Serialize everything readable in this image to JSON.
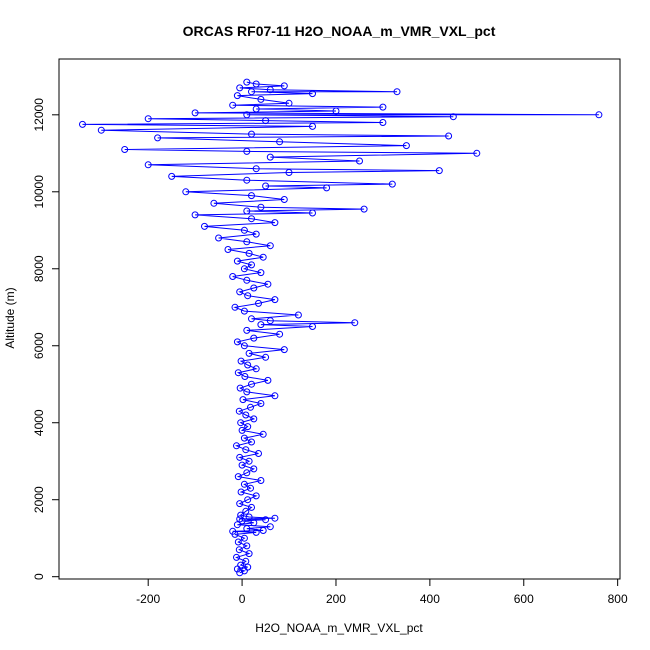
{
  "chart_data": {
    "type": "scatter",
    "title": "ORCAS RF07-11 H2O_NOAA_m_VMR_VXL_pct",
    "xlabel": "H2O_NOAA_m_VMR_VXL_pct",
    "ylabel": "Altitude (m)",
    "xlim": [
      -390,
      805
    ],
    "ylim": [
      -60,
      13450
    ],
    "x_ticks": [
      -200,
      0,
      200,
      400,
      600,
      800
    ],
    "y_ticks": [
      0,
      2000,
      4000,
      6000,
      8000,
      10000,
      12000
    ],
    "grid": false,
    "legend": "none",
    "series": [
      {
        "marker": "open-circle",
        "line": true,
        "color": "#0000ff",
        "points": [
          [
            -5,
            100
          ],
          [
            5,
            150
          ],
          [
            -10,
            200
          ],
          [
            12,
            250
          ],
          [
            -3,
            300
          ],
          [
            8,
            400
          ],
          [
            -12,
            500
          ],
          [
            15,
            600
          ],
          [
            -6,
            700
          ],
          [
            10,
            800
          ],
          [
            -8,
            900
          ],
          [
            5,
            1000
          ],
          [
            -15,
            1100
          ],
          [
            30,
            1150
          ],
          [
            -20,
            1180
          ],
          [
            45,
            1200
          ],
          [
            10,
            1250
          ],
          [
            60,
            1300
          ],
          [
            -10,
            1350
          ],
          [
            25,
            1400
          ],
          [
            0,
            1450
          ],
          [
            50,
            1480
          ],
          [
            -5,
            1500
          ],
          [
            70,
            1520
          ],
          [
            15,
            1550
          ],
          [
            -3,
            1600
          ],
          [
            8,
            1700
          ],
          [
            20,
            1800
          ],
          [
            -5,
            1900
          ],
          [
            12,
            2000
          ],
          [
            30,
            2100
          ],
          [
            -2,
            2200
          ],
          [
            18,
            2300
          ],
          [
            5,
            2400
          ],
          [
            40,
            2500
          ],
          [
            -8,
            2600
          ],
          [
            10,
            2700
          ],
          [
            25,
            2800
          ],
          [
            0,
            2900
          ],
          [
            15,
            3000
          ],
          [
            -5,
            3100
          ],
          [
            35,
            3200
          ],
          [
            8,
            3300
          ],
          [
            -12,
            3400
          ],
          [
            20,
            3500
          ],
          [
            5,
            3600
          ],
          [
            45,
            3700
          ],
          [
            0,
            3800
          ],
          [
            12,
            3900
          ],
          [
            -3,
            4000
          ],
          [
            25,
            4100
          ],
          [
            8,
            4200
          ],
          [
            -6,
            4300
          ],
          [
            18,
            4400
          ],
          [
            40,
            4500
          ],
          [
            2,
            4600
          ],
          [
            70,
            4700
          ],
          [
            10,
            4800
          ],
          [
            -4,
            4900
          ],
          [
            20,
            5000
          ],
          [
            55,
            5100
          ],
          [
            6,
            5200
          ],
          [
            -8,
            5300
          ],
          [
            30,
            5400
          ],
          [
            12,
            5500
          ],
          [
            -2,
            5600
          ],
          [
            50,
            5700
          ],
          [
            15,
            5800
          ],
          [
            90,
            5900
          ],
          [
            5,
            6000
          ],
          [
            -10,
            6100
          ],
          [
            25,
            6200
          ],
          [
            80,
            6300
          ],
          [
            10,
            6400
          ],
          [
            150,
            6500
          ],
          [
            40,
            6550
          ],
          [
            240,
            6600
          ],
          [
            60,
            6650
          ],
          [
            20,
            6700
          ],
          [
            120,
            6800
          ],
          [
            5,
            6900
          ],
          [
            -15,
            7000
          ],
          [
            35,
            7100
          ],
          [
            70,
            7200
          ],
          [
            12,
            7300
          ],
          [
            -5,
            7400
          ],
          [
            25,
            7500
          ],
          [
            55,
            7600
          ],
          [
            10,
            7700
          ],
          [
            -20,
            7800
          ],
          [
            40,
            7900
          ],
          [
            5,
            8000
          ],
          [
            20,
            8100
          ],
          [
            -10,
            8200
          ],
          [
            45,
            8300
          ],
          [
            15,
            8400
          ],
          [
            -30,
            8500
          ],
          [
            60,
            8600
          ],
          [
            10,
            8700
          ],
          [
            -50,
            8800
          ],
          [
            30,
            8900
          ],
          [
            5,
            9000
          ],
          [
            -80,
            9100
          ],
          [
            70,
            9200
          ],
          [
            20,
            9300
          ],
          [
            -100,
            9400
          ],
          [
            150,
            9450
          ],
          [
            10,
            9500
          ],
          [
            260,
            9550
          ],
          [
            40,
            9600
          ],
          [
            -60,
            9700
          ],
          [
            90,
            9800
          ],
          [
            20,
            9900
          ],
          [
            -120,
            10000
          ],
          [
            180,
            10100
          ],
          [
            50,
            10150
          ],
          [
            320,
            10200
          ],
          [
            10,
            10300
          ],
          [
            -150,
            10400
          ],
          [
            100,
            10500
          ],
          [
            420,
            10550
          ],
          [
            30,
            10600
          ],
          [
            -200,
            10700
          ],
          [
            250,
            10800
          ],
          [
            60,
            10900
          ],
          [
            500,
            11000
          ],
          [
            10,
            11050
          ],
          [
            -250,
            11100
          ],
          [
            350,
            11200
          ],
          [
            80,
            11300
          ],
          [
            -180,
            11400
          ],
          [
            440,
            11450
          ],
          [
            20,
            11500
          ],
          [
            -300,
            11600
          ],
          [
            150,
            11700
          ],
          [
            -340,
            11750
          ],
          [
            300,
            11800
          ],
          [
            50,
            11850
          ],
          [
            -200,
            11900
          ],
          [
            450,
            11950
          ],
          [
            10,
            12000
          ],
          [
            760,
            12000
          ],
          [
            -100,
            12050
          ],
          [
            200,
            12100
          ],
          [
            30,
            12150
          ],
          [
            300,
            12200
          ],
          [
            -20,
            12250
          ],
          [
            100,
            12300
          ],
          [
            40,
            12400
          ],
          [
            -10,
            12500
          ],
          [
            150,
            12550
          ],
          [
            20,
            12600
          ],
          [
            330,
            12600
          ],
          [
            60,
            12650
          ],
          [
            -5,
            12700
          ],
          [
            90,
            12750
          ],
          [
            30,
            12800
          ],
          [
            10,
            12850
          ]
        ]
      }
    ]
  }
}
